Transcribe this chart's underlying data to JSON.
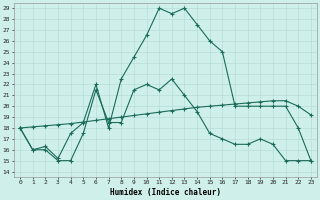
{
  "xlabel": "Humidex (Indice chaleur)",
  "background_color": "#cff0ea",
  "grid_color": "#b8ddd8",
  "line_color": "#1a6b5a",
  "xlim": [
    -0.5,
    23.5
  ],
  "ylim": [
    13.5,
    29.5
  ],
  "yticks": [
    14,
    15,
    16,
    17,
    18,
    19,
    20,
    21,
    22,
    23,
    24,
    25,
    26,
    27,
    28,
    29
  ],
  "xticks": [
    0,
    1,
    2,
    3,
    4,
    5,
    6,
    7,
    8,
    9,
    10,
    11,
    12,
    13,
    14,
    15,
    16,
    17,
    18,
    19,
    20,
    21,
    22,
    23
  ],
  "series1_x": [
    0,
    1,
    2,
    3,
    4,
    5,
    6,
    7,
    8,
    9,
    10,
    11,
    12,
    13,
    14,
    15,
    16,
    17,
    18,
    19,
    20,
    21,
    22,
    23
  ],
  "series1_y": [
    18.0,
    16.0,
    16.0,
    15.0,
    15.0,
    17.5,
    21.5,
    18.5,
    18.5,
    21.5,
    22.0,
    21.5,
    22.5,
    21.0,
    19.5,
    17.5,
    17.0,
    16.5,
    16.5,
    17.0,
    16.5,
    15.0,
    15.0,
    15.0
  ],
  "series2_x": [
    0,
    1,
    2,
    3,
    4,
    5,
    6,
    7,
    8,
    9,
    10,
    11,
    12,
    13,
    14,
    15,
    16,
    17,
    18,
    19,
    20,
    21,
    22,
    23
  ],
  "series2_y": [
    18.0,
    16.0,
    16.3,
    15.2,
    17.5,
    18.5,
    22.0,
    18.0,
    22.5,
    24.5,
    26.5,
    29.0,
    28.5,
    29.0,
    27.5,
    26.0,
    25.0,
    20.0,
    20.0,
    20.0,
    20.0,
    20.0,
    18.0,
    15.0
  ],
  "series3_x": [
    0,
    1,
    2,
    3,
    4,
    5,
    6,
    7,
    8,
    9,
    10,
    11,
    12,
    13,
    14,
    15,
    16,
    17,
    18,
    19,
    20,
    21,
    22,
    23
  ],
  "series3_y": [
    18.0,
    18.1,
    18.2,
    18.3,
    18.4,
    18.55,
    18.7,
    18.85,
    19.0,
    19.15,
    19.3,
    19.45,
    19.6,
    19.75,
    19.9,
    20.0,
    20.1,
    20.2,
    20.3,
    20.4,
    20.5,
    20.5,
    20.0,
    19.2
  ]
}
